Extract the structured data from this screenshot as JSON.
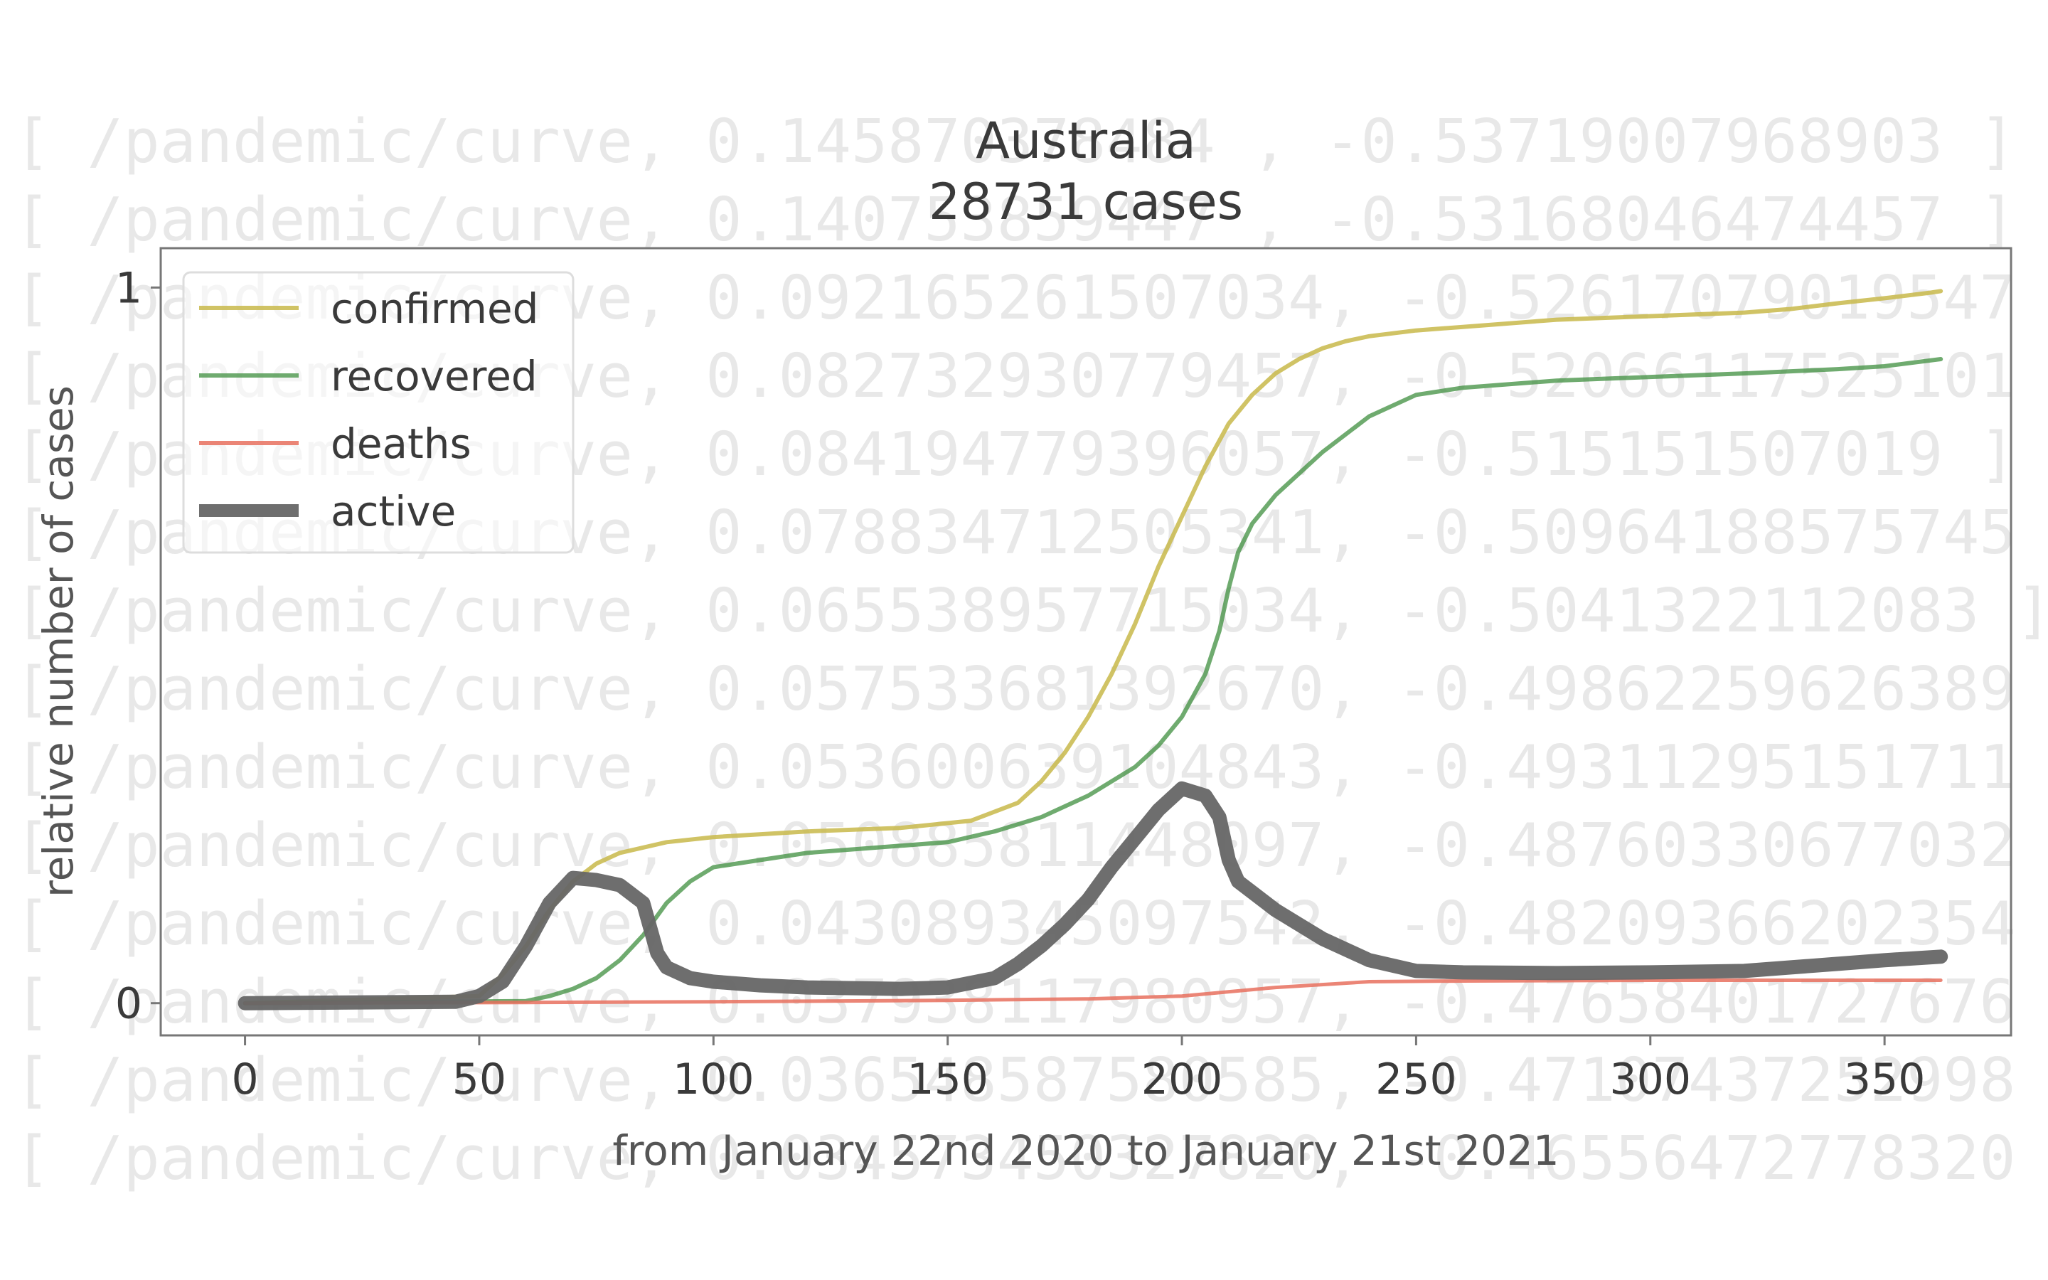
{
  "background_text": {
    "lines": [
      "[ /pandemic/curve, 0.145870378484 , -0.53719007968903 ]",
      "[ /pandemic/curve, 0.140753859447 , -0.53168046474457 ]",
      "[ /pandemic/curve, 0.092165261507034, -0.52617079019547 ]",
      "[ /pandemic/curve, 0.082732930779457, -0.52066117525101 ]",
      "[ /pandemic/curve, 0.084194779396057, -0.515151507019 ]",
      "[ /pandemic/curve, 0.078834712505341, -0.50964188575745 ]",
      "[ /pandemic/curve, 0.065538957715034, -0.5041322112083 ]",
      "[ /pandemic/curve, 0.057533681392670, -0.49862259626389 ]",
      "[ /pandemic/curve, 0.053600639104843, -0.49311295151711 ]",
      "[ /pandemic/curve, 0.050885811448097, -0.48760330677032 ]",
      "[ /pandemic/curve, 0.043089345097542, -0.48209366202354 ]",
      "[ /pandemic/curve, 0.037938117980957, -0.47658401727676 ]",
      "[ /pandemic/curve, 0.036548587580585, -0.47107437252998 ]",
      "[ /pandemic/curve, 0.034573450327820, -0.46556472778320 ]"
    ]
  },
  "colors": {
    "confirmed": "#c8b84a",
    "recovered": "#3f8f3f",
    "deaths": "#e8705e",
    "active": "#666666",
    "frame": "#777777"
  },
  "chart_data": {
    "type": "line",
    "title": "Australia",
    "subtitle": "28731 cases",
    "xlabel": "from January 22nd 2020 to January 21st 2021",
    "ylabel": "relative number of cases",
    "xlim": [
      -18,
      377
    ],
    "ylim": [
      -0.045,
      1.055
    ],
    "x_ticks": [
      0,
      50,
      100,
      150,
      200,
      250,
      300,
      350
    ],
    "x_tick_labels": [
      "0",
      "50",
      "100",
      "150",
      "200",
      "250",
      "300",
      "350"
    ],
    "y_ticks": [
      0,
      1
    ],
    "y_tick_labels": [
      "0",
      "1"
    ],
    "grid": false,
    "legend_position": "top-left",
    "series": [
      {
        "name": "confirmed",
        "x": [
          0,
          50,
          55,
          60,
          65,
          70,
          75,
          80,
          90,
          100,
          120,
          140,
          155,
          165,
          170,
          175,
          180,
          185,
          190,
          195,
          200,
          205,
          210,
          215,
          220,
          225,
          230,
          235,
          240,
          250,
          260,
          280,
          300,
          320,
          330,
          340,
          350,
          360,
          362
        ],
        "y": [
          0,
          0.01,
          0.04,
          0.08,
          0.13,
          0.17,
          0.195,
          0.21,
          0.225,
          0.232,
          0.24,
          0.245,
          0.255,
          0.28,
          0.31,
          0.35,
          0.4,
          0.46,
          0.53,
          0.61,
          0.68,
          0.75,
          0.81,
          0.85,
          0.88,
          0.9,
          0.915,
          0.925,
          0.932,
          0.94,
          0.945,
          0.955,
          0.96,
          0.965,
          0.97,
          0.978,
          0.985,
          0.993,
          0.995
        ]
      },
      {
        "name": "recovered",
        "x": [
          0,
          60,
          65,
          70,
          75,
          80,
          85,
          90,
          95,
          100,
          110,
          120,
          140,
          150,
          160,
          170,
          180,
          190,
          195,
          200,
          205,
          208,
          210,
          212,
          215,
          220,
          225,
          230,
          240,
          250,
          260,
          280,
          300,
          320,
          340,
          350,
          362
        ],
        "y": [
          0,
          0.003,
          0.01,
          0.02,
          0.035,
          0.06,
          0.095,
          0.14,
          0.17,
          0.19,
          0.2,
          0.21,
          0.22,
          0.225,
          0.24,
          0.26,
          0.29,
          0.33,
          0.36,
          0.4,
          0.46,
          0.52,
          0.58,
          0.63,
          0.67,
          0.71,
          0.74,
          0.77,
          0.82,
          0.85,
          0.86,
          0.87,
          0.875,
          0.88,
          0.886,
          0.89,
          0.9
        ]
      },
      {
        "name": "deaths",
        "x": [
          0,
          60,
          100,
          150,
          180,
          200,
          220,
          240,
          260,
          300,
          362
        ],
        "y": [
          0,
          0.001,
          0.002,
          0.004,
          0.006,
          0.01,
          0.022,
          0.03,
          0.031,
          0.032,
          0.032
        ]
      },
      {
        "name": "active",
        "x": [
          0,
          45,
          50,
          55,
          60,
          65,
          70,
          75,
          80,
          85,
          88,
          90,
          95,
          100,
          110,
          120,
          140,
          150,
          160,
          165,
          170,
          175,
          180,
          185,
          190,
          195,
          200,
          205,
          208,
          210,
          212,
          215,
          220,
          225,
          230,
          240,
          250,
          260,
          280,
          300,
          320,
          330,
          340,
          350,
          362
        ],
        "y": [
          0,
          0.002,
          0.01,
          0.03,
          0.08,
          0.14,
          0.175,
          0.172,
          0.165,
          0.14,
          0.07,
          0.05,
          0.035,
          0.03,
          0.025,
          0.022,
          0.02,
          0.022,
          0.035,
          0.055,
          0.08,
          0.11,
          0.145,
          0.19,
          0.23,
          0.27,
          0.3,
          0.29,
          0.26,
          0.2,
          0.17,
          0.155,
          0.13,
          0.11,
          0.09,
          0.06,
          0.045,
          0.043,
          0.042,
          0.043,
          0.045,
          0.05,
          0.055,
          0.06,
          0.065
        ]
      }
    ]
  }
}
